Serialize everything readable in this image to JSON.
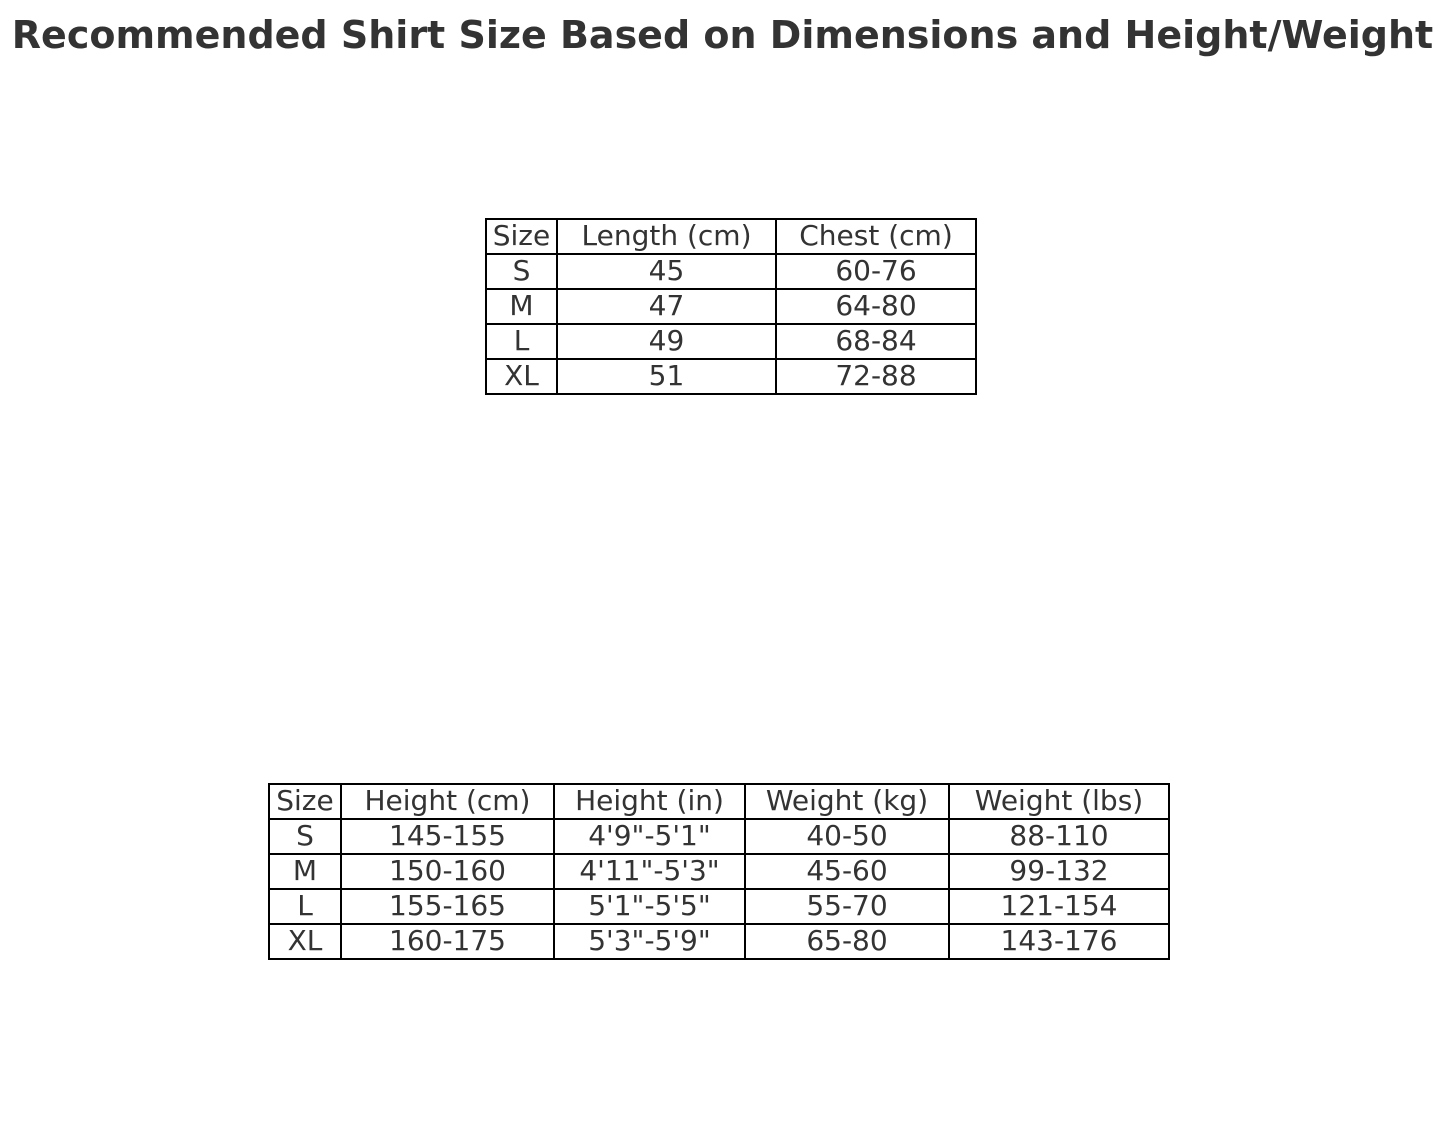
{
  "title": "Recommended Shirt Size Based on Dimensions and Height/Weight",
  "colors": {
    "text": "#333333",
    "border": "#000000",
    "background": "#ffffff"
  },
  "chart_data": [
    {
      "type": "table",
      "columns": [
        "Size",
        "Length (cm)",
        "Chest (cm)"
      ],
      "rows": [
        [
          "S",
          "45",
          "60-76"
        ],
        [
          "M",
          "47",
          "64-80"
        ],
        [
          "L",
          "49",
          "68-84"
        ],
        [
          "XL",
          "51",
          "72-88"
        ]
      ]
    },
    {
      "type": "table",
      "columns": [
        "Size",
        "Height (cm)",
        "Height (in)",
        "Weight (kg)",
        "Weight (lbs)"
      ],
      "rows": [
        [
          "S",
          "145-155",
          "4'9\"-5'1\"",
          "40-50",
          "88-110"
        ],
        [
          "M",
          "150-160",
          "4'11\"-5'3\"",
          "45-60",
          "99-132"
        ],
        [
          "L",
          "155-165",
          "5'1\"-5'5\"",
          "55-70",
          "121-154"
        ],
        [
          "XL",
          "160-175",
          "5'3\"-5'9\"",
          "65-80",
          "143-176"
        ]
      ]
    }
  ]
}
